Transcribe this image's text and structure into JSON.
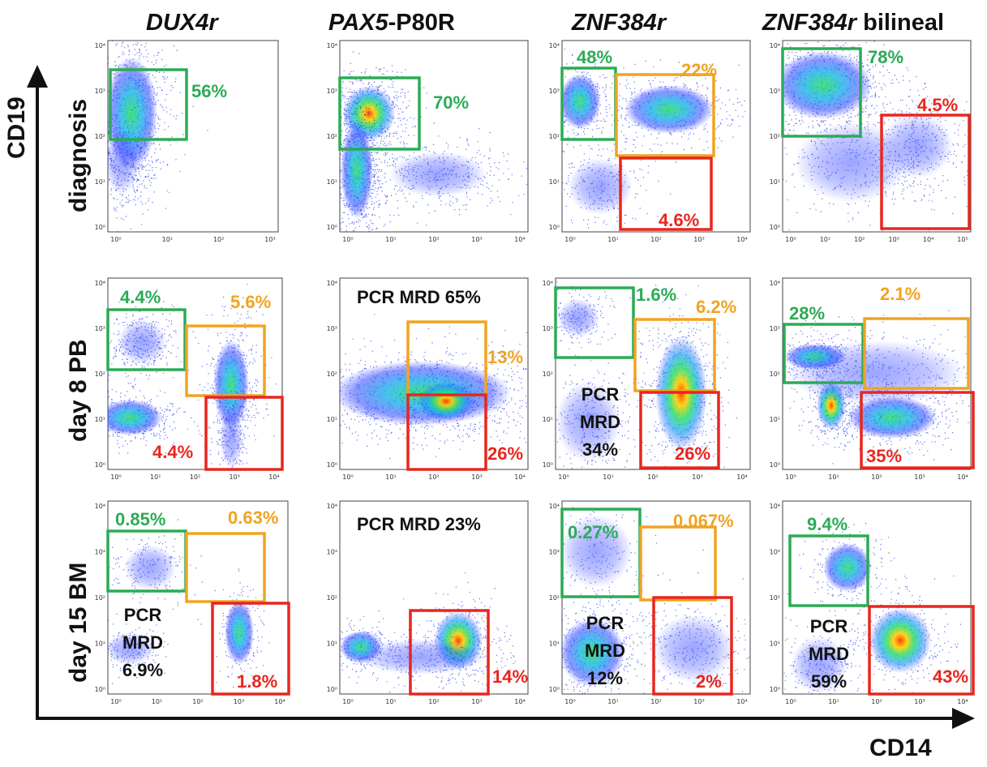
{
  "columns": [
    {
      "italic": "DUX4r",
      "plain": ""
    },
    {
      "italic": "PAX5",
      "plain": "-P80R"
    },
    {
      "italic": "ZNF384r",
      "plain": ""
    },
    {
      "italic": "ZNF384r",
      "plain": " bilineal"
    }
  ],
  "rows": [
    "diagnosis",
    "day 8 PB",
    "day 15 BM"
  ],
  "axes": {
    "y": "CD19",
    "x": "CD14"
  },
  "tick_labels": [
    "10⁰",
    "10¹",
    "10²",
    "10³",
    "10⁴",
    "10⁵"
  ],
  "colors": {
    "green": "#2bab55",
    "orange": "#f1a320",
    "red": "#e8261e",
    "dots": "#2b3cf0"
  },
  "panels": [
    {
      "id": "p00",
      "gates": [
        {
          "c": "green",
          "label": "56%"
        }
      ]
    },
    {
      "id": "p01",
      "gates": [
        {
          "c": "green",
          "label": "70%"
        }
      ]
    },
    {
      "id": "p02",
      "gates": [
        {
          "c": "green",
          "label": "48%"
        },
        {
          "c": "orange",
          "label": "22%"
        },
        {
          "c": "red",
          "label": "4.6%"
        }
      ]
    },
    {
      "id": "p03",
      "gates": [
        {
          "c": "green",
          "label": "78%"
        },
        {
          "c": "red",
          "label": "4.5%"
        }
      ]
    },
    {
      "id": "p10",
      "gates": [
        {
          "c": "green",
          "label": "4.4%"
        },
        {
          "c": "orange",
          "label": "5.6%"
        },
        {
          "c": "red",
          "label": "4.4%"
        }
      ]
    },
    {
      "id": "p11",
      "mrd_top": "PCR MRD 65%",
      "gates": [
        {
          "c": "orange",
          "label": "13%"
        },
        {
          "c": "red",
          "label": "26%"
        }
      ]
    },
    {
      "id": "p12",
      "mrd": [
        "PCR",
        "MRD",
        "34%"
      ],
      "gates": [
        {
          "c": "green",
          "label": "1.6%"
        },
        {
          "c": "orange",
          "label": "6.2%"
        },
        {
          "c": "red",
          "label": "26%"
        }
      ]
    },
    {
      "id": "p13",
      "gates": [
        {
          "c": "green",
          "label": "28%"
        },
        {
          "c": "orange",
          "label": "2.1%"
        },
        {
          "c": "red",
          "label": "35%"
        }
      ]
    },
    {
      "id": "p20",
      "mrd": [
        "PCR",
        "MRD",
        "6.9%"
      ],
      "gates": [
        {
          "c": "green",
          "label": "0.85%"
        },
        {
          "c": "orange",
          "label": "0.63%"
        },
        {
          "c": "red",
          "label": "1.8%"
        }
      ]
    },
    {
      "id": "p21",
      "mrd_top": "PCR MRD 23%",
      "gates": [
        {
          "c": "red",
          "label": "14%"
        }
      ]
    },
    {
      "id": "p22",
      "mrd": [
        "PCR",
        "MRD",
        "12%"
      ],
      "gates": [
        {
          "c": "green",
          "label": "0.27%"
        },
        {
          "c": "orange",
          "label": "0.067%"
        },
        {
          "c": "red",
          "label": "2%"
        }
      ]
    },
    {
      "id": "p23",
      "mrd": [
        "PCR",
        "MRD",
        "59%"
      ],
      "gates": [
        {
          "c": "green",
          "label": "9.4%"
        },
        {
          "c": "red",
          "label": "43%"
        }
      ]
    }
  ]
}
